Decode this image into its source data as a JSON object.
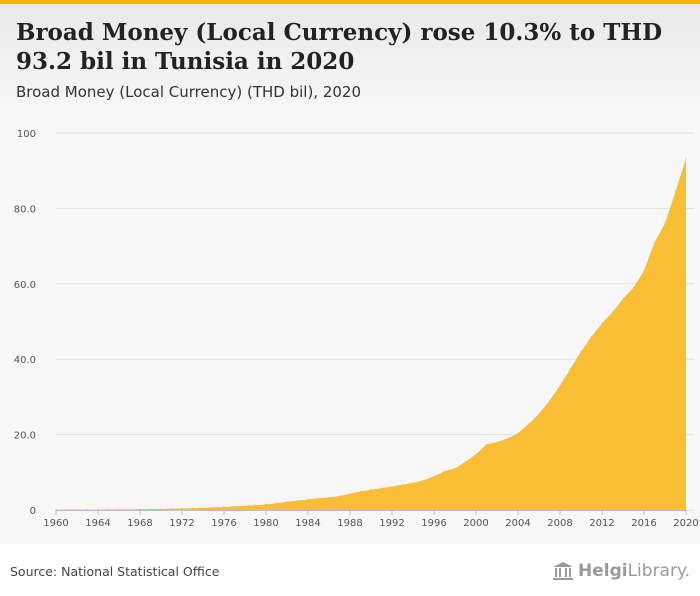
{
  "header": {
    "title": "Broad Money (Local Currency) rose 10.3% to THD 93.2 bil in Tunisia in 2020",
    "subtitle": "Broad Money (Local Currency) (THD bil), 2020"
  },
  "footer": {
    "source": "Source: National Statistical Office",
    "logo_brand": "Helgi",
    "logo_suffix": "Library.",
    "logo_icon": "library-columns-icon"
  },
  "colors": {
    "area": "#f9bd36",
    "accent": "#f6b400",
    "grid": "#e2e2e2"
  },
  "chart_data": {
    "type": "area",
    "title": "Broad Money (Local Currency) rose 10.3% to THD 93.2 bil in Tunisia in 2020",
    "subtitle": "Broad Money (Local Currency) (THD bil), 2020",
    "xlabel": "",
    "ylabel": "",
    "xlim": [
      1960,
      2020
    ],
    "ylim": [
      0,
      100
    ],
    "grid": true,
    "y_ticks": [
      0,
      20,
      40,
      60,
      80,
      100
    ],
    "y_tick_labels": [
      "0",
      "20.0",
      "40.0",
      "60.0",
      "80.0",
      "100"
    ],
    "x_ticks": [
      1960,
      1964,
      1968,
      1972,
      1976,
      1980,
      1984,
      1988,
      1992,
      1996,
      2000,
      2004,
      2008,
      2012,
      2016,
      2020
    ],
    "x_tick_labels": [
      "1960",
      "1964",
      "1968",
      "1972",
      "1976",
      "1980",
      "1984",
      "1988",
      "1992",
      "1996",
      "2000",
      "2004",
      "2008",
      "2012",
      "2016",
      "2020"
    ],
    "series": [
      {
        "x": [
          1960,
          1961,
          1962,
          1963,
          1964,
          1965,
          1966,
          1967,
          1968,
          1969,
          1970,
          1971,
          1972,
          1973,
          1974,
          1975,
          1976,
          1977,
          1978,
          1979,
          1980,
          1981,
          1982,
          1983,
          1984,
          1985,
          1986,
          1987,
          1988,
          1989,
          1990,
          1991,
          1992,
          1993,
          1994,
          1995,
          1996,
          1997,
          1998,
          1999,
          2000,
          2001,
          2002,
          2003,
          2004,
          2005,
          2006,
          2007,
          2008,
          2009,
          2010,
          2011,
          2012,
          2013,
          2014,
          2015,
          2016,
          2017,
          2018,
          2019,
          2020
        ],
        "values": [
          0.1,
          0.1,
          0.1,
          0.1,
          0.1,
          0.15,
          0.15,
          0.2,
          0.2,
          0.25,
          0.3,
          0.35,
          0.4,
          0.5,
          0.6,
          0.7,
          0.8,
          0.95,
          1.1,
          1.3,
          1.5,
          1.8,
          2.2,
          2.5,
          2.8,
          3.1,
          3.3,
          3.7,
          4.3,
          4.9,
          5.4,
          5.8,
          6.2,
          6.7,
          7.2,
          7.9,
          8.9,
          10.3,
          11.0,
          12.8,
          14.8,
          17.4,
          18.0,
          18.9,
          20.4,
          22.8,
          25.5,
          29.0,
          33.0,
          37.5,
          42.0,
          46.0,
          49.5,
          52.5,
          56.0,
          59.0,
          63.5,
          71.0,
          76.0,
          84.5,
          93.2
        ]
      }
    ]
  }
}
